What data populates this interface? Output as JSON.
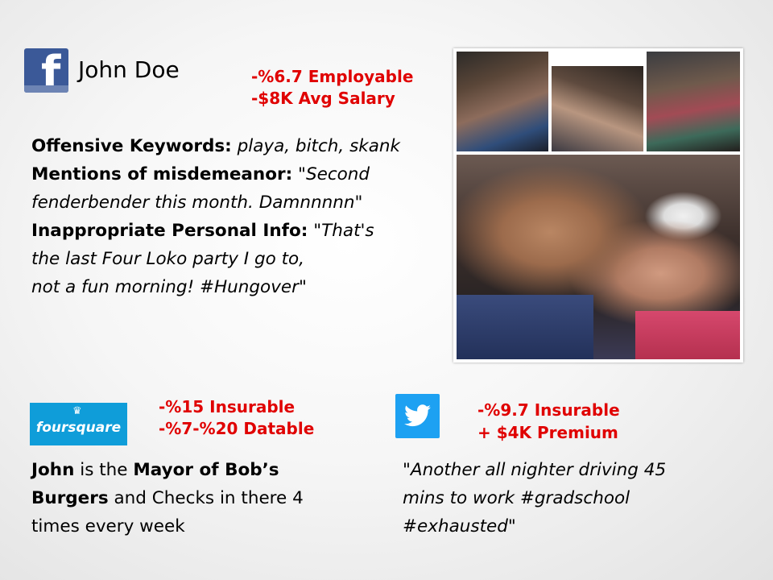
{
  "facebook": {
    "name": "John Doe",
    "impact": [
      "-%6.7 Employable",
      "-$8K Avg Salary"
    ],
    "offensive_label": "Offensive Keywords:",
    "offensive_value": " playa, bitch, skank",
    "misdemeanor_label": "Mentions of misdemeanor:",
    "misdemeanor_value_1": " \"Second",
    "misdemeanor_value_2": "fenderbender this month. Damnnnnn\"",
    "inappropriate_label": "Inappropriate Personal Info:",
    "inappropriate_value_1": " \"That's",
    "inappropriate_value_2": "the last Four Loko party I go to,",
    "inappropriate_value_3": "not a fun morning! #Hungover\""
  },
  "foursquare": {
    "logo_text": "foursquare",
    "impact": [
      "-%15 Insurable",
      "-%7-%20 Datable"
    ],
    "details": {
      "john": "John",
      "t1": " is the ",
      "mayor": "Mayor of Bob’s",
      "burgers": "Burgers",
      "t2": " and Checks in there 4",
      "t3": "times every week"
    }
  },
  "twitter": {
    "impact": [
      "-%9.7 Insurable",
      "+ $4K Premium"
    ],
    "tweet_lines": [
      "\"Another all nighter driving 45",
      "mins to work #gradschool",
      "#exhausted\""
    ]
  },
  "icons": {
    "facebook": "facebook-logo-icon",
    "foursquare": "foursquare-logo-icon",
    "twitter": "twitter-bird-icon"
  },
  "colors": {
    "impact": "#e00000",
    "facebook": "#3b5998",
    "foursquare": "#0f9dd9",
    "twitter": "#1da1f2"
  }
}
